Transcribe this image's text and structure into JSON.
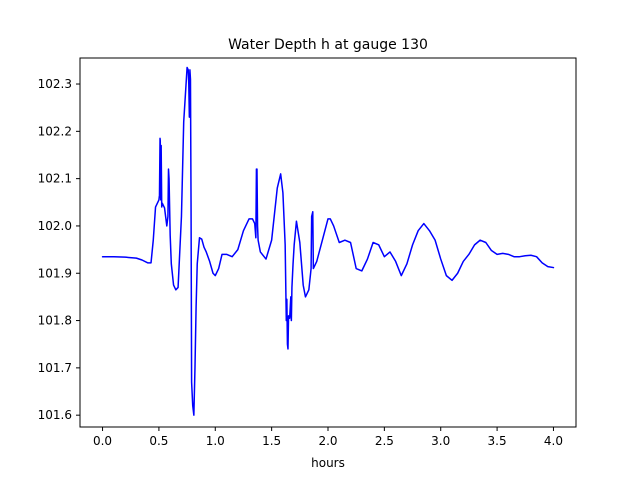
{
  "chart_data": {
    "type": "line",
    "title": "Water Depth h at gauge 130",
    "xlabel": "hours",
    "ylabel": "",
    "xlim": [
      -0.2,
      4.2
    ],
    "ylim": [
      101.575,
      102.355
    ],
    "xticks": [
      0.0,
      0.5,
      1.0,
      1.5,
      2.0,
      2.5,
      3.0,
      3.5,
      4.0
    ],
    "xtick_labels": [
      "0.0",
      "0.5",
      "1.0",
      "1.5",
      "2.0",
      "2.5",
      "3.0",
      "3.5",
      "4.0"
    ],
    "yticks": [
      101.6,
      101.7,
      101.8,
      101.9,
      102.0,
      102.1,
      102.2,
      102.3
    ],
    "ytick_labels": [
      "101.6",
      "101.7",
      "101.8",
      "101.9",
      "102.0",
      "102.1",
      "102.2",
      "102.3"
    ],
    "grid": false,
    "series": [
      {
        "color": "#0000ff",
        "x": [
          0.0,
          0.1,
          0.2,
          0.3,
          0.35,
          0.4,
          0.43,
          0.45,
          0.47,
          0.5,
          0.505,
          0.51,
          0.512,
          0.516,
          0.52,
          0.525,
          0.53,
          0.55,
          0.57,
          0.58,
          0.585,
          0.59,
          0.6,
          0.61,
          0.63,
          0.65,
          0.67,
          0.7,
          0.72,
          0.75,
          0.76,
          0.765,
          0.77,
          0.775,
          0.78,
          0.785,
          0.79,
          0.8,
          0.81,
          0.82,
          0.83,
          0.84,
          0.86,
          0.88,
          0.9,
          0.92,
          0.95,
          0.98,
          1.0,
          1.03,
          1.06,
          1.1,
          1.15,
          1.2,
          1.25,
          1.3,
          1.33,
          1.35,
          1.36,
          1.365,
          1.37,
          1.375,
          1.38,
          1.4,
          1.45,
          1.5,
          1.55,
          1.58,
          1.6,
          1.62,
          1.63,
          1.635,
          1.64,
          1.645,
          1.65,
          1.66,
          1.67,
          1.675,
          1.68,
          1.69,
          1.7,
          1.72,
          1.75,
          1.78,
          1.8,
          1.83,
          1.85,
          1.855,
          1.86,
          1.865,
          1.87,
          1.9,
          1.95,
          2.0,
          2.02,
          2.05,
          2.1,
          2.15,
          2.2,
          2.25,
          2.3,
          2.35,
          2.4,
          2.45,
          2.5,
          2.55,
          2.6,
          2.65,
          2.7,
          2.75,
          2.8,
          2.85,
          2.9,
          2.95,
          3.0,
          3.05,
          3.1,
          3.15,
          3.2,
          3.25,
          3.3,
          3.35,
          3.4,
          3.45,
          3.5,
          3.55,
          3.6,
          3.65,
          3.7,
          3.75,
          3.8,
          3.85,
          3.9,
          3.95,
          4.0
        ],
        "y": [
          101.935,
          101.935,
          101.934,
          101.932,
          101.928,
          101.922,
          101.922,
          101.97,
          102.04,
          102.055,
          102.065,
          102.185,
          102.18,
          102.055,
          102.17,
          102.04,
          102.048,
          102.038,
          102.0,
          102.02,
          102.12,
          102.1,
          101.98,
          101.92,
          101.875,
          101.865,
          101.87,
          102.02,
          102.22,
          102.335,
          102.33,
          102.3,
          102.23,
          102.33,
          102.31,
          102.05,
          101.67,
          101.62,
          101.6,
          101.7,
          101.83,
          101.92,
          101.975,
          101.972,
          101.955,
          101.945,
          101.925,
          101.9,
          101.895,
          101.91,
          101.94,
          101.94,
          101.935,
          101.95,
          101.99,
          102.015,
          102.015,
          102.005,
          101.975,
          102.12,
          102.12,
          102.0,
          101.97,
          101.945,
          101.93,
          101.97,
          102.08,
          102.11,
          102.07,
          101.96,
          101.8,
          101.845,
          101.75,
          101.74,
          101.81,
          101.805,
          101.85,
          101.8,
          101.87,
          101.92,
          101.96,
          102.01,
          101.965,
          101.875,
          101.85,
          101.865,
          101.91,
          102.02,
          102.025,
          102.03,
          101.91,
          101.925,
          101.97,
          102.015,
          102.015,
          102.0,
          101.965,
          101.97,
          101.965,
          101.91,
          101.905,
          101.93,
          101.965,
          101.96,
          101.935,
          101.945,
          101.925,
          101.895,
          101.92,
          101.96,
          101.99,
          102.005,
          101.99,
          101.97,
          101.93,
          101.895,
          101.885,
          101.9,
          101.925,
          101.94,
          101.96,
          101.97,
          101.965,
          101.948,
          101.94,
          101.942,
          101.94,
          101.935,
          101.935,
          101.937,
          101.938,
          101.935,
          101.922,
          101.914,
          101.912
        ]
      }
    ]
  }
}
